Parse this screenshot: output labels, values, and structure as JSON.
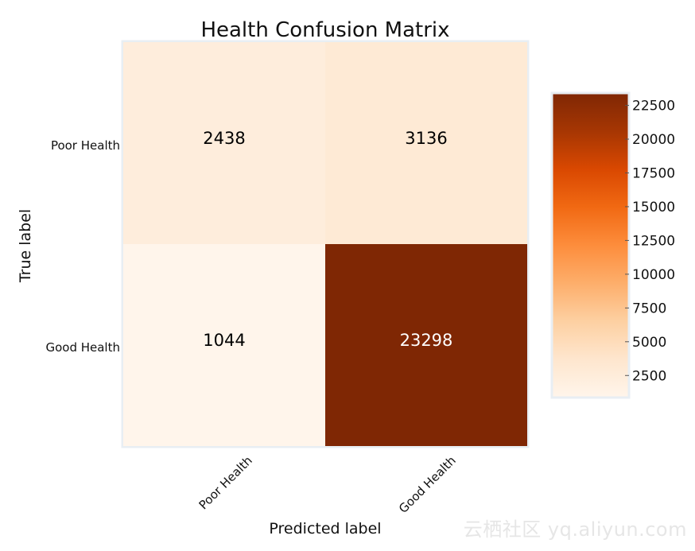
{
  "chart_data": {
    "type": "heatmap",
    "title": "Health Confusion Matrix",
    "xlabel": "Predicted label",
    "ylabel": "True label",
    "x_categories": [
      "Poor Health",
      "Good Health"
    ],
    "y_categories": [
      "Poor Health",
      "Good Health"
    ],
    "values": [
      [
        2438,
        3136
      ],
      [
        1044,
        23298
      ]
    ],
    "colormap": "Oranges",
    "colorbar": {
      "range": [
        1044,
        23298
      ],
      "ticks": [
        2500,
        5000,
        7500,
        10000,
        12500,
        15000,
        17500,
        20000,
        22500
      ],
      "tick_labels": [
        "2500",
        "5000",
        "7500",
        "10000",
        "12500",
        "15000",
        "17500",
        "20000",
        "22500"
      ]
    },
    "colors": {
      "low": "#fff5eb",
      "high": "#7f2704",
      "text_dark": "#000000",
      "text_light": "#ffffff"
    }
  },
  "watermark": "云栖社区 yq.aliyun.com"
}
